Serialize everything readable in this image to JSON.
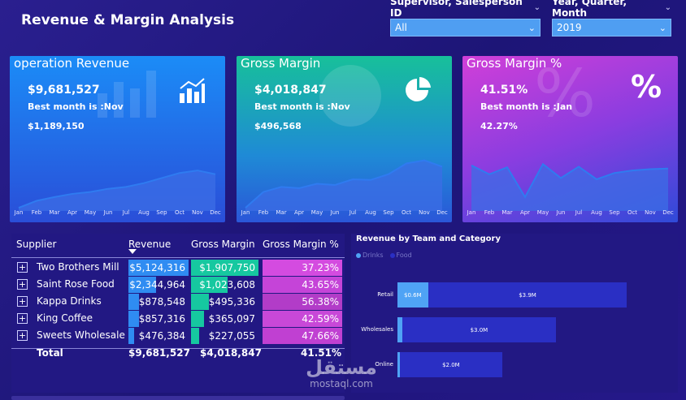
{
  "title": "Revenue & Margin Analysis",
  "slicers": [
    {
      "label": "Supervisor, Salesperson ID",
      "value": "All"
    },
    {
      "label": "Year, Quarter, Month",
      "value": "2019"
    }
  ],
  "months": [
    "Jan",
    "Feb",
    "Mar",
    "Apr",
    "May",
    "Jun",
    "Jul",
    "Aug",
    "Sep",
    "Oct",
    "Nov",
    "Dec"
  ],
  "cards": [
    {
      "title": "operation Revenue",
      "value": "$9,681,527",
      "best_label": "Best month is :Nov",
      "best_value": "$1,189,150",
      "icon": "bar-chart-icon",
      "trend": [
        0.05,
        0.16,
        0.22,
        0.27,
        0.3,
        0.35,
        0.38,
        0.44,
        0.52,
        0.6,
        0.64,
        0.58
      ]
    },
    {
      "title": "Gross Margin",
      "value": "$4,018,847",
      "best_label": "Best month is :Nov",
      "best_value": "$496,568",
      "icon": "pie-chart-icon",
      "trend": [
        0.05,
        0.3,
        0.38,
        0.36,
        0.43,
        0.41,
        0.5,
        0.49,
        0.58,
        0.75,
        0.8,
        0.7
      ]
    },
    {
      "title": "Gross Margin %",
      "value": "41.51%",
      "best_label": "Best month is :Jan",
      "best_value": "42.27%",
      "icon": "percent-icon",
      "trend": [
        0.72,
        0.58,
        0.69,
        0.22,
        0.74,
        0.52,
        0.7,
        0.5,
        0.6,
        0.64,
        0.66,
        0.67
      ]
    }
  ],
  "table": {
    "headers": [
      "Supplier",
      "Revenue",
      "Gross Margin",
      "Gross Margin %"
    ],
    "rows": [
      {
        "supplier": "Two Brothers Mill",
        "revenue": "$5,124,316",
        "gross_margin": "$1,907,750",
        "gm_pct": "37.23%",
        "rev_frac": 1.0,
        "gm_frac": 1.0
      },
      {
        "supplier": "Saint Rose Food",
        "revenue": "$2,344,964",
        "gross_margin": "$1,023,608",
        "gm_pct": "43.65%",
        "rev_frac": 0.46,
        "gm_frac": 0.54
      },
      {
        "supplier": "Kappa Drinks",
        "revenue": "$878,548",
        "gross_margin": "$495,336",
        "gm_pct": "56.38%",
        "rev_frac": 0.17,
        "gm_frac": 0.26
      },
      {
        "supplier": "King Coffee",
        "revenue": "$857,316",
        "gross_margin": "$365,097",
        "gm_pct": "42.59%",
        "rev_frac": 0.17,
        "gm_frac": 0.19
      },
      {
        "supplier": "Sweets Wholesale",
        "revenue": "$476,384",
        "gross_margin": "$227,055",
        "gm_pct": "47.66%",
        "rev_frac": 0.09,
        "gm_frac": 0.12
      }
    ],
    "total": {
      "label": "Total",
      "revenue": "$9,681,527",
      "gross_margin": "$4,018,847",
      "gm_pct": "41.51%"
    }
  },
  "team_chart": {
    "title": "Revenue by Team and Category",
    "legend": [
      {
        "name": "Drinks",
        "color": "#4fa3f5"
      },
      {
        "name": "Food",
        "color": "#2a2fc4"
      }
    ],
    "rows": [
      {
        "team": "Retail",
        "drinks": 0.6,
        "food": 3.9,
        "drinks_label": "$0.6M",
        "food_label": "$3.9M"
      },
      {
        "team": "Wholesales",
        "drinks": 0.1,
        "food": 3.0,
        "drinks_label": "",
        "food_label": "$3.0M"
      },
      {
        "team": "Online",
        "drinks": 0.05,
        "food": 2.0,
        "drinks_label": "",
        "food_label": "$2.0M"
      }
    ]
  },
  "watermark": {
    "arabic": "مستقل",
    "latin": "mostaql.com"
  }
}
